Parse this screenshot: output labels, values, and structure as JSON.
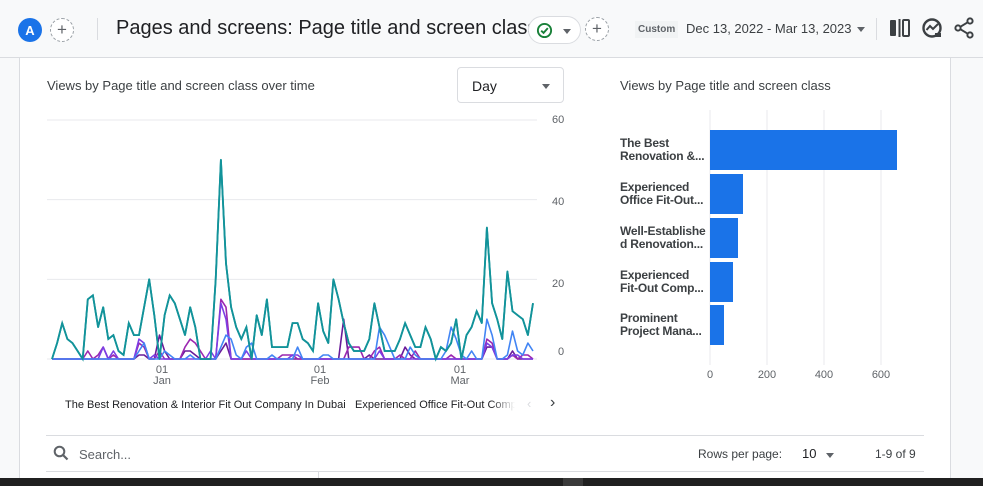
{
  "header": {
    "avatar_letter": "A",
    "page_title": "Pages and screens: Page title and screen class",
    "date_chip": "Custom",
    "date_range": "Dec 13, 2022 - Mar 13, 2023",
    "icons": [
      "add-comparison-icon",
      "status-check-icon",
      "compare-icon",
      "insights-icon",
      "share-icon"
    ]
  },
  "line_card": {
    "title": "Views by Page title and screen class over time",
    "granularity": "Day",
    "legend": [
      "The Best Renovation & Interior Fit Out Company In Dubai",
      "Experienced Office Fit-Out Comp"
    ]
  },
  "bar_card": {
    "title": "Views by Page title and screen class"
  },
  "table_controls": {
    "search_placeholder": "Search...",
    "rows_per_page_label": "Rows per page:",
    "rows_per_page_value": "10",
    "pagination": "1-9 of 9"
  },
  "colors": {
    "series_1": "#12939a",
    "series_2": "#4285f4",
    "series_3": "#7b3fe4",
    "series_4": "#9c27b0",
    "series_5": "#6a1b9a",
    "bar": "#1a73e8"
  },
  "chart_data": [
    {
      "type": "line",
      "title": "Views by Page title and screen class over time",
      "xlabel": "",
      "ylabel": "",
      "ylim": [
        0,
        60
      ],
      "yticks": [
        0,
        20,
        40,
        60
      ],
      "xticks": [
        "01 Jan",
        "01 Feb",
        "01 Mar"
      ],
      "x_start": "Dec 13, 2022",
      "x_end": "Mar 13, 2023",
      "series": [
        {
          "name": "The Best Renovation & Interior Fit Out Company In Dubai",
          "values": [
            0,
            4,
            9,
            5,
            4,
            2,
            0,
            15,
            16,
            8,
            13,
            5,
            6,
            2,
            1,
            9,
            6,
            6,
            13,
            20,
            11,
            0,
            11,
            16,
            14,
            10,
            6,
            13,
            8,
            0,
            0,
            0,
            20,
            50,
            24,
            13,
            8,
            5,
            8,
            0,
            11,
            6,
            15,
            3,
            3,
            3,
            3,
            9,
            9,
            5,
            4,
            2,
            14,
            7,
            4,
            20,
            15,
            9,
            4,
            2,
            2,
            2,
            5,
            14,
            8,
            2,
            2,
            2,
            5,
            9,
            6,
            3,
            3,
            8,
            5,
            0,
            3,
            2,
            4,
            10,
            0,
            6,
            8,
            12,
            9,
            33,
            14,
            10,
            5,
            22,
            12,
            11,
            10,
            6,
            14
          ]
        },
        {
          "name": "Experienced Office Fit-Out Comp",
          "values": [
            0,
            0,
            0,
            0,
            0,
            0,
            0,
            0,
            0,
            0,
            0,
            0,
            0,
            0,
            0,
            0,
            0,
            2,
            4,
            0,
            0,
            0,
            2,
            1,
            0,
            0,
            0,
            1,
            0,
            0,
            0,
            0,
            0,
            3,
            6,
            5,
            1,
            0,
            3,
            4,
            0,
            0,
            0,
            1,
            0,
            0,
            0,
            0,
            3,
            0,
            0,
            0,
            0,
            1,
            1,
            0,
            0,
            0,
            0,
            0,
            0,
            0,
            0,
            0,
            8,
            6,
            3,
            0,
            0,
            0,
            3,
            1,
            0,
            0,
            0,
            0,
            0,
            2,
            8,
            5,
            1,
            0,
            2,
            0,
            0,
            10,
            6,
            0,
            0,
            1,
            7,
            2,
            1,
            4,
            2
          ]
        },
        {
          "name": "Well-Established Renovation...",
          "values": [
            0,
            0,
            0,
            0,
            0,
            0,
            0,
            0,
            0,
            0,
            3,
            0,
            2,
            0,
            0,
            0,
            0,
            5,
            4,
            0,
            1,
            0,
            0,
            0,
            0,
            0,
            0,
            0,
            0,
            0,
            0,
            2,
            0,
            14,
            10,
            0,
            0,
            0,
            2,
            0,
            0,
            0,
            0,
            0,
            0,
            0,
            0,
            1,
            1,
            0,
            0,
            0,
            0,
            0,
            0,
            0,
            0,
            0,
            0,
            0,
            0,
            0,
            0,
            0,
            2,
            0,
            0,
            0,
            0,
            0,
            0,
            0,
            0,
            0,
            0,
            0,
            0,
            0,
            0,
            0,
            0,
            0,
            0,
            0,
            0,
            4,
            3,
            0,
            0,
            0,
            1,
            1,
            0,
            0,
            0
          ]
        },
        {
          "name": "Experienced Fit-Out Comp...",
          "values": [
            0,
            0,
            0,
            0,
            0,
            0,
            0,
            2,
            0,
            1,
            3,
            0,
            1,
            0,
            0,
            0,
            0,
            4,
            3,
            0,
            0,
            2,
            0,
            0,
            0,
            0,
            3,
            5,
            4,
            2,
            0,
            0,
            0,
            15,
            13,
            0,
            0,
            0,
            0,
            0,
            0,
            0,
            0,
            0,
            0,
            1,
            1,
            1,
            0,
            0,
            0,
            0,
            0,
            0,
            0,
            0,
            0,
            0,
            3,
            3,
            3,
            0,
            0,
            2,
            3,
            0,
            0,
            0,
            1,
            0,
            0,
            2,
            0,
            0,
            0,
            0,
            0,
            0,
            1,
            0,
            0,
            0,
            0,
            0,
            0,
            5,
            4,
            0,
            0,
            0,
            1,
            0,
            1,
            1,
            0
          ]
        },
        {
          "name": "Prominent Project Mana...",
          "values": [
            0,
            0,
            0,
            0,
            0,
            0,
            0,
            0,
            0,
            0,
            0,
            0,
            0,
            0,
            0,
            0,
            0,
            1,
            1,
            0,
            0,
            6,
            2,
            0,
            0,
            0,
            2,
            2,
            1,
            0,
            0,
            0,
            0,
            2,
            4,
            0,
            0,
            0,
            0,
            0,
            0,
            0,
            0,
            0,
            0,
            0,
            0,
            0,
            0,
            0,
            0,
            0,
            0,
            0,
            0,
            0,
            0,
            10,
            0,
            0,
            0,
            0,
            1,
            0,
            0,
            0,
            0,
            0,
            0,
            3,
            1,
            0,
            0,
            0,
            0,
            0,
            0,
            0,
            0,
            0,
            0,
            0,
            0,
            0,
            0,
            3,
            3,
            0,
            0,
            0,
            2,
            0,
            0,
            0,
            0
          ]
        }
      ]
    },
    {
      "type": "bar",
      "orientation": "horizontal",
      "title": "Views by Page title and screen class",
      "categories": [
        "The Best Renovation &...",
        "Experienced Office Fit-Out...",
        "Well-Establishe d Renovation...",
        "Experienced Fit-Out Comp...",
        "Prominent Project Mana..."
      ],
      "category_lines": [
        [
          "The Best",
          "Renovation &..."
        ],
        [
          "Experienced",
          "Office Fit-Out..."
        ],
        [
          "Well-Establishe",
          "d Renovation..."
        ],
        [
          "Experienced",
          "Fit-Out Comp..."
        ],
        [
          "Prominent",
          "Project Mana..."
        ]
      ],
      "values": [
        655,
        116,
        98,
        81,
        49
      ],
      "xticks": [
        "0",
        "200",
        "400",
        "600"
      ],
      "xlim": [
        0,
        700
      ]
    }
  ]
}
